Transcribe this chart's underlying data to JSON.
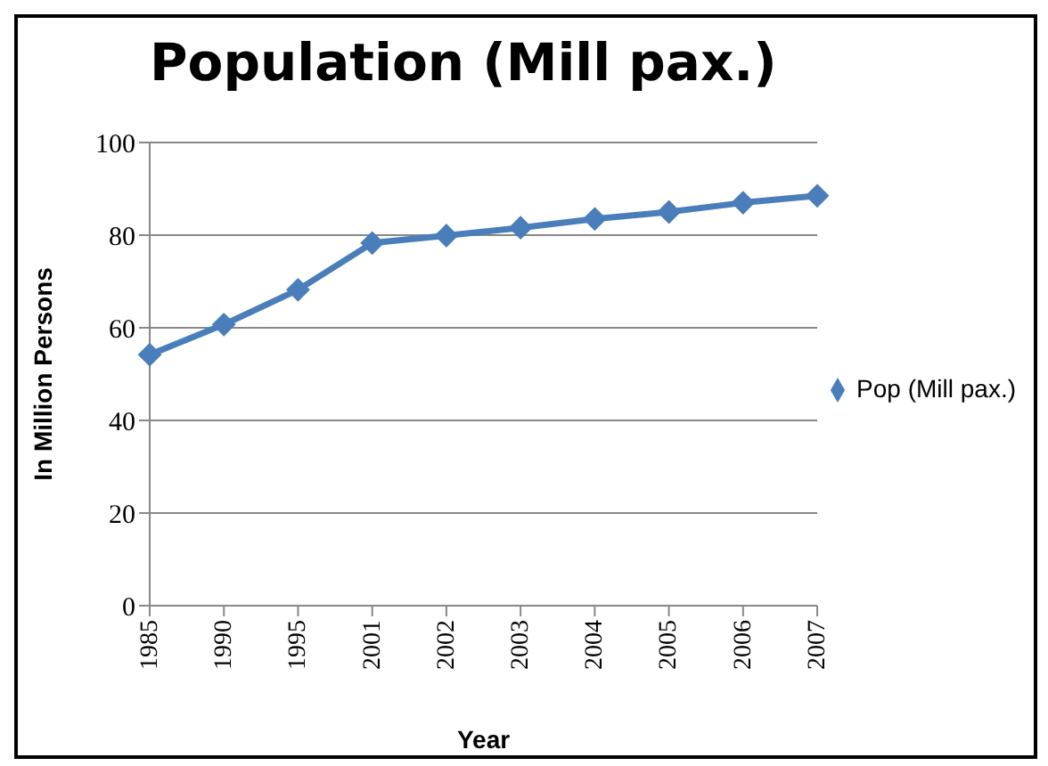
{
  "chart_data": {
    "type": "line",
    "title": "Population  (Mill pax.)",
    "xlabel": "Year",
    "ylabel": "In Million Persons",
    "categories": [
      "1985",
      "1990",
      "1995",
      "2001",
      "2002",
      "2003",
      "2004",
      "2005",
      "2006",
      "2007"
    ],
    "series": [
      {
        "name": "Pop  (Mill pax.)",
        "color": "#4a7ebb",
        "values": [
          54.2,
          60.7,
          68.2,
          78.3,
          79.9,
          81.6,
          83.5,
          85.0,
          87.0,
          88.5
        ]
      }
    ],
    "ylim": [
      0,
      100
    ],
    "yticks": [
      0,
      20,
      40,
      60,
      80,
      100
    ],
    "grid": "y",
    "legend": "right",
    "marker": "diamond"
  }
}
